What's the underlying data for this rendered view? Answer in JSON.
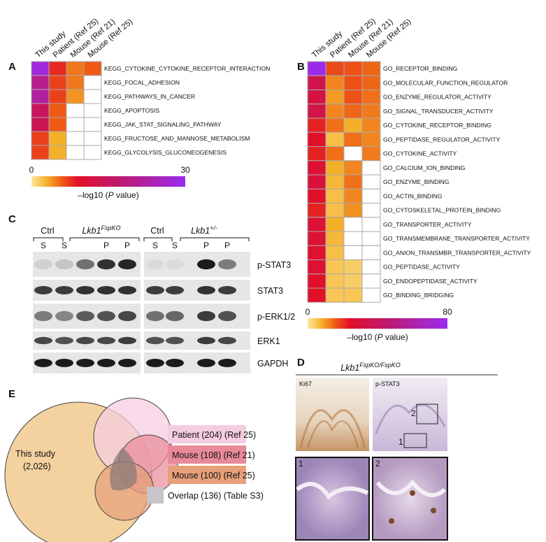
{
  "panels": {
    "A": {
      "label": "A",
      "columns": [
        "This study",
        "Patient (Ref 25)",
        "Mouse (Ref 21)",
        "Mouse (Ref 25)"
      ],
      "rows": [
        {
          "name": "KEGG_CYTOKINE_CYTOKINE_RECEPTOR_INTERACTION",
          "values": [
            28,
            8,
            5,
            6
          ]
        },
        {
          "name": "KEGG_FOCAL_ADHESION",
          "values": [
            20,
            7,
            5,
            null
          ]
        },
        {
          "name": "KEGG_PATHWAYS_IN_CANCER",
          "values": [
            22,
            7,
            4,
            null
          ]
        },
        {
          "name": "KEGG_APOPTOSIS",
          "values": [
            15,
            6,
            null,
            null
          ]
        },
        {
          "name": "KEGG_JAK_STAT_SIGNALING_PATHWAY",
          "values": [
            14,
            6,
            null,
            null
          ]
        },
        {
          "name": "KEGG_FRUCTOSE_AND_MANNOSE_METABOLISM",
          "values": [
            7,
            3,
            null,
            null
          ]
        },
        {
          "name": "KEGG_GLYCOLYSIS_GLUCONEOGENESIS",
          "values": [
            7,
            3,
            null,
            null
          ]
        }
      ],
      "scale": {
        "range": [
          0,
          30
        ],
        "ticks": [
          0,
          30
        ],
        "caption": [
          "–log10 (",
          "P",
          " value)"
        ]
      }
    },
    "B": {
      "label": "B",
      "columns": [
        "This study",
        "Patient (Ref 25)",
        "Mouse (Ref 21)",
        "Mouse (Ref 25)"
      ],
      "rows": [
        {
          "name": "GO_RECEPTOR_BINDING",
          "values": [
            78,
            18,
            17,
            15
          ]
        },
        {
          "name": "GO_MOLECULAR_FUNCTION_REGULATOR",
          "values": [
            35,
            12,
            17,
            15
          ]
        },
        {
          "name": "GO_ENZYME_REGULATOR_ACTIVITY",
          "values": [
            32,
            10,
            17,
            14
          ]
        },
        {
          "name": "GO_SIGNAL_TRANSDUCER_ACTIVITY",
          "values": [
            33,
            12,
            15,
            13
          ]
        },
        {
          "name": "GO_CYTOKINE_RECEPTOR_BINDING",
          "values": [
            22,
            14,
            8,
            12
          ]
        },
        {
          "name": "GO_PEPTIDASE_REGULATOR_ACTIVITY",
          "values": [
            25,
            6,
            14,
            12
          ]
        },
        {
          "name": "GO_CYTOKINE_ACTIVITY",
          "values": [
            22,
            14,
            null,
            13
          ]
        },
        {
          "name": "GO_CALCIUM_ION_BINDING",
          "values": [
            28,
            8,
            12,
            null
          ]
        },
        {
          "name": "GO_ENZYME_BINDING",
          "values": [
            30,
            7,
            14,
            null
          ]
        },
        {
          "name": "GO_ACTIN_BINDING",
          "values": [
            25,
            6,
            12,
            null
          ]
        },
        {
          "name": "GO_CYTOSKELETAL_PROTEIN_BINDING",
          "values": [
            22,
            6,
            11,
            null
          ]
        },
        {
          "name": "GO_TRANSPORTER_ACTIVITY",
          "values": [
            28,
            8,
            null,
            null
          ]
        },
        {
          "name": "GO_TRANSMEMBRANE_TRANSPORTER_ACTIVITY",
          "values": [
            28,
            7,
            null,
            null
          ]
        },
        {
          "name": "GO_ANION_TRANSMBR_TRANSPORTER_ACTIVITY",
          "values": [
            26,
            6,
            null,
            null
          ]
        },
        {
          "name": "GO_PEPTIDASE_ACTIVITY",
          "values": [
            27,
            5,
            4,
            null
          ]
        },
        {
          "name": "GO_ENDOPEPTIDASE_ACTIVITY",
          "values": [
            25,
            5,
            4,
            null
          ]
        },
        {
          "name": "GO_BINDING_BRIDGING",
          "values": [
            24,
            5,
            5,
            null
          ]
        }
      ],
      "scale": {
        "range": [
          0,
          80
        ],
        "ticks": [
          0,
          80
        ],
        "caption": [
          "–log10 (",
          "P",
          " value)"
        ]
      }
    },
    "C": {
      "label": "C",
      "groups": [
        {
          "name": "Ctrl"
        },
        {
          "name": "Lkb1",
          "sup": "FspKO"
        },
        {
          "name": "Ctrl"
        },
        {
          "name": "Lkb1",
          "sup": "+/-"
        }
      ],
      "lanes": [
        [
          "S",
          "S",
          "P",
          "P"
        ],
        [
          "S",
          "S",
          "P",
          "P"
        ]
      ],
      "bands": [
        "p-STAT3",
        "STAT3",
        "p-ERK1/2",
        "ERK1",
        "GAPDH"
      ]
    },
    "D": {
      "label": "D",
      "title": {
        "name": "Lkb1",
        "sup": "FspKO/FspKO"
      },
      "images": [
        "Ki67",
        "p-STAT3"
      ],
      "box_labels": [
        "2",
        "1"
      ],
      "insets": [
        "1",
        "2"
      ]
    },
    "E": {
      "label": "E",
      "main": {
        "name": "This study",
        "count": "(2,026)"
      },
      "legend": [
        "Patient (204) (Ref 25)",
        "Mouse (108) (Ref 21)",
        "Mouse (100) (Ref 25)",
        "Overlap (136) (Table S3)"
      ]
    }
  }
}
